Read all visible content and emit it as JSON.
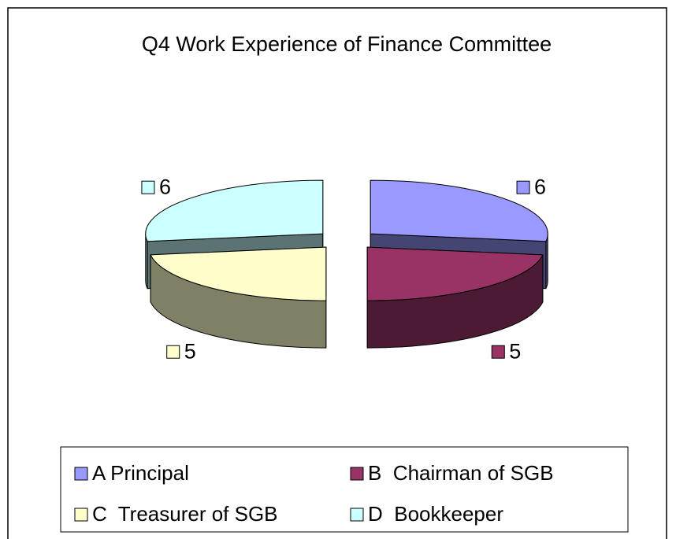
{
  "chart_data": {
    "type": "pie",
    "title": "Q4 Work Experience of Finance Committee",
    "categories": [
      "A Principal",
      "B  Chairman of SGB",
      "C  Treasurer of SGB",
      "D  Bookkeeper"
    ],
    "values": [
      6,
      5,
      5,
      6
    ],
    "colors": [
      "#9999ff",
      "#993366",
      "#ffffcc",
      "#ccffff"
    ],
    "legend": "bottom"
  }
}
